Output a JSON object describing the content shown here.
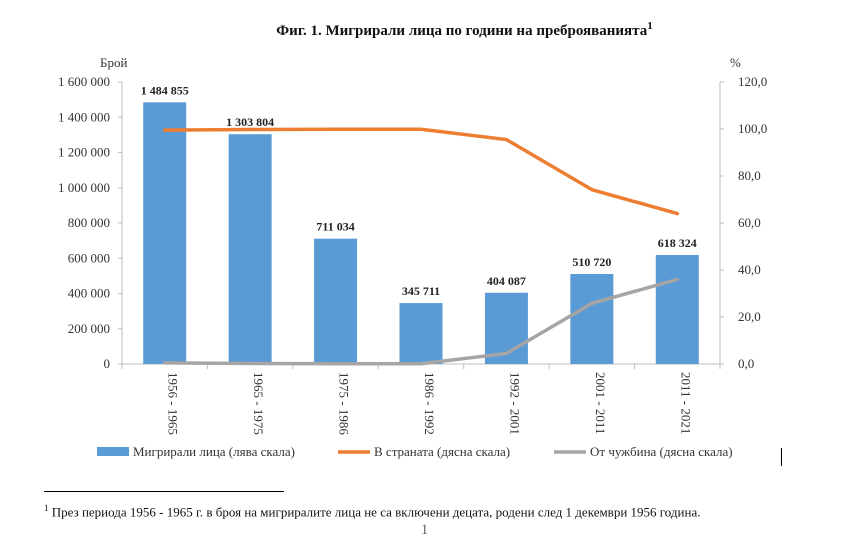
{
  "title": "Фиг. 1. Мигрирали лица по години на преброяванията",
  "title_sup": "1",
  "chart_data": {
    "type": "bar",
    "categories": [
      "1956 - 1965",
      "1965 - 1975",
      "1975 - 1986",
      "1986 - 1992",
      "1992 - 2001",
      "2001 - 2011",
      "2011 - 2021"
    ],
    "bar_series": {
      "name": "Мигрирали лица (лява скала)",
      "values": [
        1484855,
        1303804,
        711034,
        345711,
        404087,
        510720,
        618324
      ],
      "labels": [
        "1 484 855",
        "1 303 804",
        "711 034",
        "345 711",
        "404 087",
        "510 720",
        "618 324"
      ],
      "color": "#5b9bd5"
    },
    "line_series": [
      {
        "name": "В страната (дясна скала)",
        "values": [
          99.5,
          99.8,
          99.9,
          99.9,
          95.5,
          74.2,
          64.0
        ],
        "color": "#ed7d31",
        "axis": "right"
      },
      {
        "name": "От чужбина (дясна скала)",
        "values": [
          0.5,
          0.2,
          0.1,
          0.1,
          4.5,
          25.8,
          36.0
        ],
        "color": "#a5a5a5",
        "axis": "right"
      }
    ],
    "ylabel_left": "Брой",
    "ylabel_right": "%",
    "ylim_left": [
      0,
      1600000
    ],
    "ylim_right": [
      0,
      120
    ],
    "left_ticks": [
      "0",
      "200 000",
      "400 000",
      "600 000",
      "800 000",
      "1 000 000",
      "1 200 000",
      "1 400 000",
      "1 600 000"
    ],
    "right_ticks": [
      "0,0",
      "20,0",
      "40,0",
      "60,0",
      "80,0",
      "100,0",
      "120,0"
    ],
    "legend_position": "bottom",
    "grid": false
  },
  "footnote": {
    "marker": "1",
    "text": "През периода 1956 - 1965 г. в броя на мигриралите лица не са включени децата, родени след 1 декември 1956 година."
  },
  "page_number": "1"
}
